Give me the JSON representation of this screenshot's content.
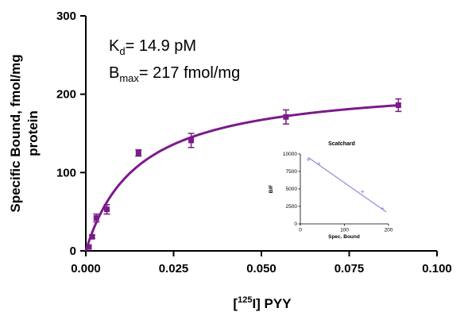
{
  "chart_data": [
    {
      "type": "scatter",
      "xlabel_main": "[",
      "xlabel_sup": "125",
      "xlabel_rest": "I] PYY",
      "ylabel_line1": "Specific Bound, fmol/mg",
      "ylabel_line2": "protein",
      "xlim": [
        0.0,
        0.1
      ],
      "ylim": [
        0,
        300
      ],
      "x_ticks": [
        "0.000",
        "0.025",
        "0.050",
        "0.075",
        "0.100"
      ],
      "y_ticks": [
        "0",
        "100",
        "200",
        "300"
      ],
      "annotations": {
        "kd_main": "K",
        "kd_sub": "d",
        "kd_rest": "= 14.9 pM",
        "bmax_main": "B",
        "bmax_sub": "max",
        "bmax_rest": "= 217 fmol/mg"
      },
      "color": "#7b1a8a",
      "series": [
        {
          "points": [
            {
              "x": 0.0009,
              "y": 5,
              "err": 0
            },
            {
              "x": 0.0018,
              "y": 18,
              "err": 2
            },
            {
              "x": 0.003,
              "y": 42,
              "err": 5
            },
            {
              "x": 0.006,
              "y": 53,
              "err": 6
            },
            {
              "x": 0.015,
              "y": 125,
              "err": 4
            },
            {
              "x": 0.03,
              "y": 141,
              "err": 9
            },
            {
              "x": 0.057,
              "y": 171,
              "err": 9
            },
            {
              "x": 0.089,
              "y": 186,
              "err": 8
            }
          ],
          "fit": {
            "Bmax": 217,
            "Kd": 0.0149
          }
        }
      ]
    },
    {
      "type": "scatter",
      "title": "Scatchard",
      "xlabel": "Spec. Bound",
      "ylabel": "B/F",
      "xlim": [
        0,
        200
      ],
      "ylim": [
        0,
        10000
      ],
      "x_ticks": [
        "0",
        "100",
        "200"
      ],
      "y_ticks": [
        "0",
        "2500",
        "5000",
        "7500",
        "10000"
      ],
      "color": "#8c8cdc",
      "points": [
        {
          "x": 18,
          "y": 9200
        },
        {
          "x": 42,
          "y": 8600
        },
        {
          "x": 141,
          "y": 4600
        },
        {
          "x": 186,
          "y": 2200
        }
      ],
      "line": [
        {
          "x": 18,
          "y": 9500
        },
        {
          "x": 195,
          "y": 1700
        }
      ]
    }
  ]
}
